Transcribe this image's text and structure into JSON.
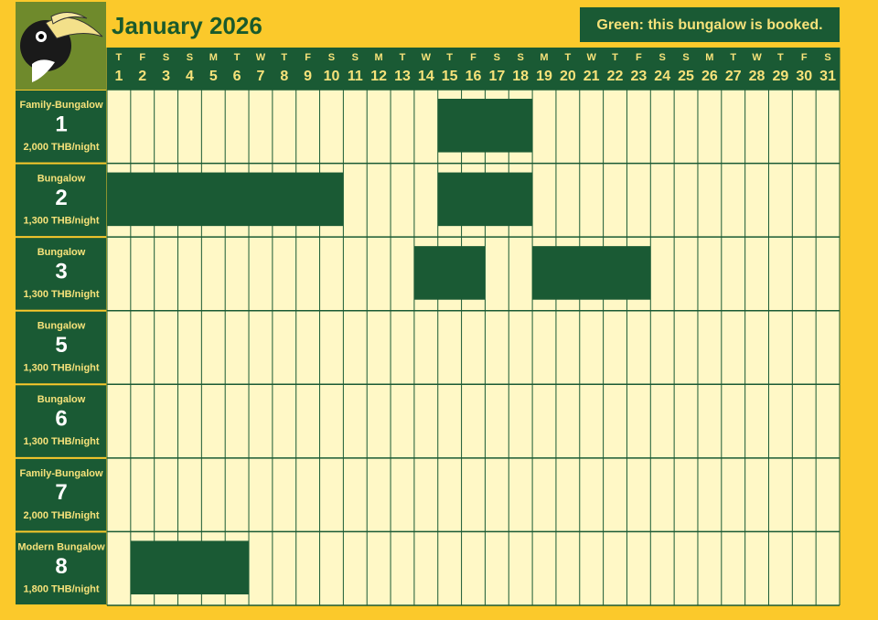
{
  "header": {
    "title": "January 2026",
    "legend": "Green: this bungalow is booked."
  },
  "days": [
    {
      "weekday": "T",
      "day": 1
    },
    {
      "weekday": "F",
      "day": 2
    },
    {
      "weekday": "S",
      "day": 3
    },
    {
      "weekday": "S",
      "day": 4
    },
    {
      "weekday": "M",
      "day": 5
    },
    {
      "weekday": "T",
      "day": 6
    },
    {
      "weekday": "W",
      "day": 7
    },
    {
      "weekday": "T",
      "day": 8
    },
    {
      "weekday": "F",
      "day": 9
    },
    {
      "weekday": "S",
      "day": 10
    },
    {
      "weekday": "S",
      "day": 11
    },
    {
      "weekday": "M",
      "day": 12
    },
    {
      "weekday": "T",
      "day": 13
    },
    {
      "weekday": "W",
      "day": 14
    },
    {
      "weekday": "T",
      "day": 15
    },
    {
      "weekday": "F",
      "day": 16
    },
    {
      "weekday": "S",
      "day": 17
    },
    {
      "weekday": "S",
      "day": 18
    },
    {
      "weekday": "M",
      "day": 19
    },
    {
      "weekday": "T",
      "day": 20
    },
    {
      "weekday": "W",
      "day": 21
    },
    {
      "weekday": "T",
      "day": 22
    },
    {
      "weekday": "F",
      "day": 23
    },
    {
      "weekday": "S",
      "day": 24
    },
    {
      "weekday": "S",
      "day": 25
    },
    {
      "weekday": "M",
      "day": 26
    },
    {
      "weekday": "T",
      "day": 27
    },
    {
      "weekday": "W",
      "day": 28
    },
    {
      "weekday": "T",
      "day": 29
    },
    {
      "weekday": "F",
      "day": 30
    },
    {
      "weekday": "S",
      "day": 31
    }
  ],
  "rows": [
    {
      "type": "Family-Bungalow",
      "number": "1",
      "price": "2,000 THB/night",
      "bookings": [
        {
          "from": 15,
          "to": 18
        }
      ]
    },
    {
      "type": "Bungalow",
      "number": "2",
      "price": "1,300 THB/night",
      "bookings": [
        {
          "from": 1,
          "to": 10
        },
        {
          "from": 15,
          "to": 18
        }
      ]
    },
    {
      "type": "Bungalow",
      "number": "3",
      "price": "1,300 THB/night",
      "bookings": [
        {
          "from": 14,
          "to": 16
        },
        {
          "from": 19,
          "to": 23
        }
      ]
    },
    {
      "type": "Bungalow",
      "number": "5",
      "price": "1,300 THB/night",
      "bookings": []
    },
    {
      "type": "Bungalow",
      "number": "6",
      "price": "1,300 THB/night",
      "bookings": []
    },
    {
      "type": "Family-Bungalow",
      "number": "7",
      "price": "2,000 THB/night",
      "bookings": []
    },
    {
      "type": "Modern Bungalow",
      "number": "8",
      "price": "1,800 THB/night",
      "bookings": [
        {
          "from": 2,
          "to": 6
        }
      ]
    }
  ]
}
